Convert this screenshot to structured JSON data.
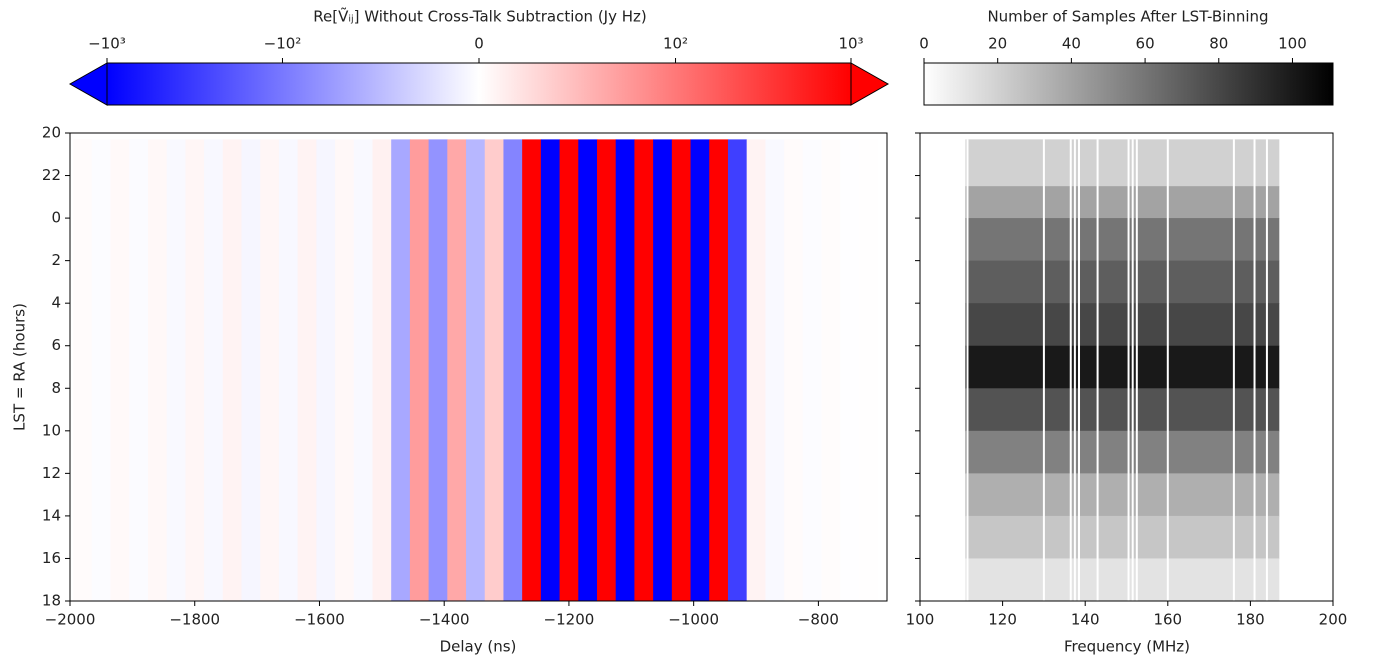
{
  "chart_data": [
    {
      "type": "heatmap-stripes",
      "colorbar_label": "Re[Ṽᵢⱼ] Without Cross-Talk Subtraction (Jy Hz)",
      "scale": "symlog",
      "linthresh": 10,
      "clim": [
        -1000,
        1000
      ],
      "cticks": [
        {
          "value": -1000,
          "label": "−10³"
        },
        {
          "value": -100,
          "label": "−10²"
        },
        0,
        {
          "value": 100,
          "label": "10²"
        },
        {
          "value": 1000,
          "label": "10³"
        }
      ],
      "xlabel": "Delay (ns)",
      "ylabel": "LST = RA (hours)",
      "xlim": [
        -2000,
        -690
      ],
      "ylim": [
        20,
        42
      ],
      "xticks": [
        {
          "value": -2000,
          "label": "−2000"
        },
        {
          "value": -1800,
          "label": "−1800"
        },
        {
          "value": -1600,
          "label": "−1600"
        },
        {
          "value": -1400,
          "label": "−1400"
        },
        {
          "value": -1200,
          "label": "−1200"
        },
        {
          "value": -1000,
          "label": "−1000"
        },
        {
          "value": -800,
          "label": "−800"
        }
      ],
      "yticks": [
        20,
        22,
        {
          "value": 24,
          "label": "0"
        },
        {
          "value": 26,
          "label": "2"
        },
        {
          "value": 28,
          "label": "4"
        },
        {
          "value": 30,
          "label": "6"
        },
        {
          "value": 32,
          "label": "8"
        },
        {
          "value": 34,
          "label": "10"
        },
        {
          "value": 36,
          "label": "12"
        },
        {
          "value": 38,
          "label": "14"
        },
        {
          "value": 40,
          "label": "16"
        },
        {
          "value": 42,
          "label": "18"
        }
      ],
      "data_ylim": [
        20.3,
        42
      ],
      "x": [
        -1980,
        -1950,
        -1920,
        -1890,
        -1860,
        -1830,
        -1800,
        -1770,
        -1740,
        -1710,
        -1680,
        -1650,
        -1620,
        -1590,
        -1560,
        -1530,
        -1500,
        -1470,
        -1440,
        -1410,
        -1380,
        -1350,
        -1320,
        -1290,
        -1260,
        -1230,
        -1200,
        -1170,
        -1140,
        -1110,
        -1080,
        -1050,
        -1020,
        -990,
        -960,
        -930,
        -900,
        -870,
        -840,
        -810,
        -780,
        -750,
        -720
      ],
      "values": [
        3,
        -2,
        4,
        -3,
        5,
        -4,
        6,
        -5,
        8,
        -6,
        6,
        -5,
        8,
        -6,
        5,
        -4,
        10,
        -40,
        50,
        -60,
        40,
        -30,
        20,
        -80,
        1000,
        -1000,
        1000,
        -1000,
        1000,
        -1000,
        1000,
        -1000,
        1000,
        -1000,
        1000,
        -300,
        8,
        -4,
        3,
        -2,
        2,
        -1,
        1
      ]
    },
    {
      "type": "heatmap-gray",
      "colorbar_label": "Number of Samples After LST-Binning",
      "clim": [
        0,
        111
      ],
      "cticks": [
        0,
        20,
        40,
        60,
        80,
        100
      ],
      "xlabel": "Frequency (MHz)",
      "xlim": [
        100,
        200
      ],
      "xticks": [
        100,
        120,
        140,
        160,
        180,
        200
      ],
      "data_xlim": [
        111,
        187
      ],
      "lst_edges": [
        20.3,
        22.5,
        24,
        26,
        28,
        30,
        32,
        34,
        36,
        38,
        40,
        42
      ],
      "values": [
        20,
        40,
        60,
        70,
        80,
        100,
        75,
        55,
        35,
        25,
        12
      ],
      "flagged": [
        111.5,
        130,
        136.5,
        137.5,
        138.5,
        143,
        150.5,
        151.5,
        152.5,
        160,
        176,
        181,
        184
      ]
    }
  ]
}
